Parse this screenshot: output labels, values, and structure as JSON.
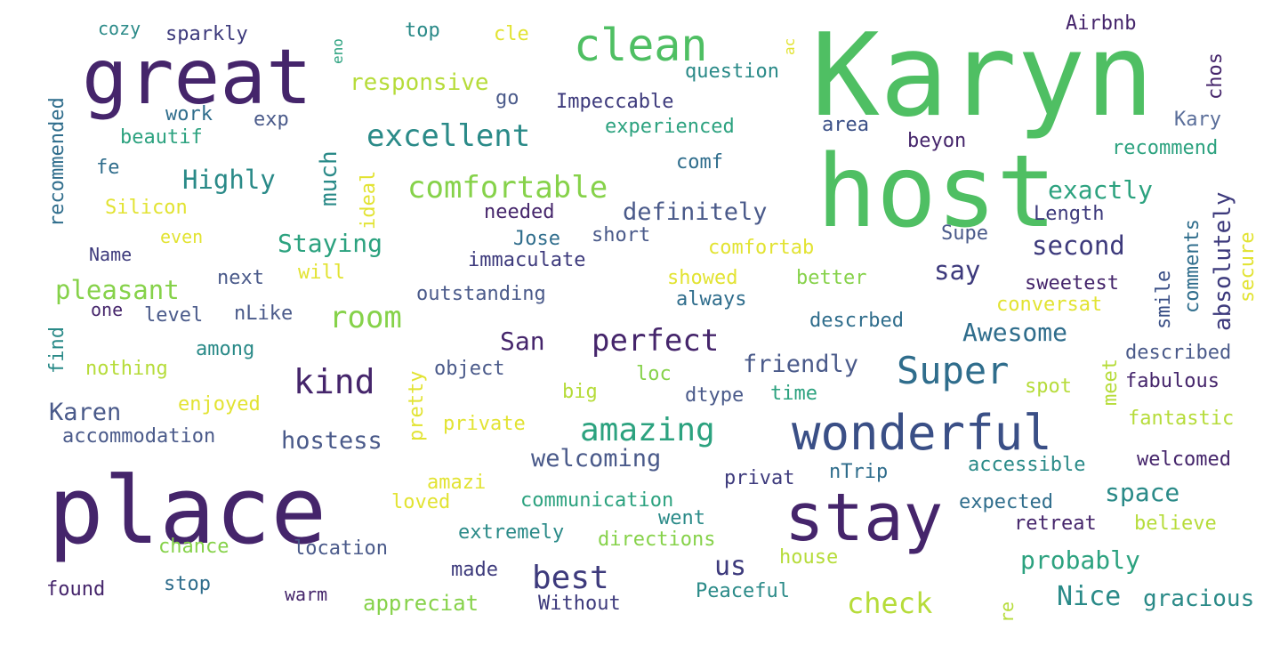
{
  "words": {
    "karyn": "Karyn",
    "host": "host",
    "great": "great",
    "place": "place",
    "stay": "stay",
    "wonderful": "wonderful",
    "clean": "clean",
    "super": "Super",
    "comfortable": "comfortable",
    "excellent": "excellent",
    "perfect": "perfect",
    "kind": "kind",
    "amazing": "amazing",
    "room": "room",
    "best": "best",
    "check": "check",
    "highly": "Highly",
    "definitely": "definitely",
    "staying": "Staying",
    "pleasant": "pleasant",
    "responsive": "responsive",
    "exactly": "exactly",
    "second": "second",
    "say": "say",
    "awesome": "Awesome",
    "friendly": "friendly",
    "san": "San",
    "karen": "Karen",
    "hostess": "hostess",
    "welcoming": "welcoming",
    "us": "us",
    "probably": "probably",
    "nice": "Nice",
    "space": "space",
    "gracious": "gracious",
    "much": "much",
    "ideal": "ideal",
    "pretty": "pretty",
    "cozy": "cozy",
    "sparkly": "sparkly",
    "top": "top",
    "cle": "cle",
    "eno": "eno",
    "ac": "ac",
    "airbnb": "Airbnb",
    "question": "question",
    "impeccable": "Impeccable",
    "go": "go",
    "experienced": "experienced",
    "area": "area",
    "beyon": "beyon",
    "kary": "Kary",
    "recommend": "recommend",
    "chos": "chos",
    "recommended": "recommended",
    "work": "work",
    "exp": "exp",
    "beautif": "beautif",
    "fe": "fe",
    "silicon": "Silicon",
    "comf": "comf",
    "needed": "needed",
    "length": "Length",
    "comments": "comments",
    "absolutely": "absolutely",
    "secure": "secure",
    "even": "even",
    "name": "Name",
    "will": "will",
    "next": "next",
    "jose": "Jose",
    "short": "short",
    "supe": "Supe",
    "immaculate": "immaculate",
    "comfortab": "comfortab",
    "showed": "showed",
    "better": "better",
    "sweetest": "sweetest",
    "smile": "smile",
    "one": "one",
    "level": "level",
    "nlike": "nLike",
    "outstanding": "outstanding",
    "always": "always",
    "conversat": "conversat",
    "descrbed": "descrbed",
    "find": "find",
    "among": "among",
    "nothing": "nothing",
    "object": "object",
    "loc": "loc",
    "described": "described",
    "meet": "meet",
    "big": "big",
    "dtype": "dtype",
    "time": "time",
    "spot": "spot",
    "fabulous": "fabulous",
    "enjoyed": "enjoyed",
    "fantastic": "fantastic",
    "accommodation": "accommodation",
    "private": "private",
    "accessible": "accessible",
    "welcomed": "welcomed",
    "privat": "privat",
    "ntrip": "nTrip",
    "amazi": "amazi",
    "loved": "loved",
    "communication": "communication",
    "went": "went",
    "expected": "expected",
    "extremely": "extremely",
    "directions": "directions",
    "retreat": "retreat",
    "believe": "believe",
    "chance": "chance",
    "location": "location",
    "house": "house",
    "made": "made",
    "found": "found",
    "stop": "stop",
    "warm": "warm",
    "appreciat": "appreciat",
    "without": "Without",
    "peaceful": "Peaceful",
    "re": "re"
  },
  "colors": {
    "background": "#ffffff",
    "palette": [
      "#45256b",
      "#3d3a7c",
      "#2f6d8c",
      "#2a8a88",
      "#2ca27f",
      "#4fbf63",
      "#86d24a",
      "#b6dc3a",
      "#e2e332"
    ]
  }
}
